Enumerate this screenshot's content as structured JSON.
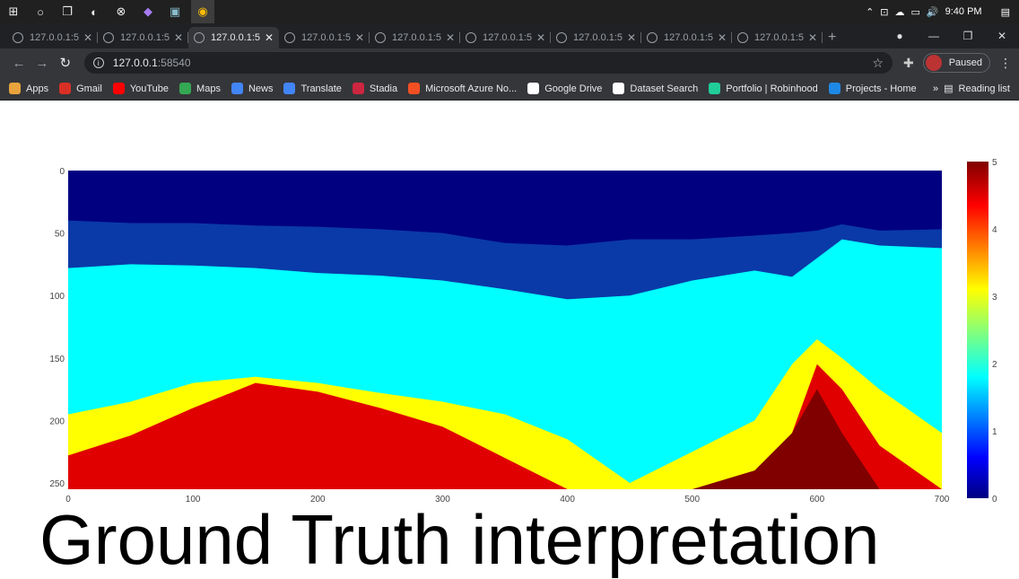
{
  "taskbar": {
    "time": "9:40 PM",
    "apps": [
      {
        "name": "windows-start-icon"
      },
      {
        "name": "cortana-icon"
      },
      {
        "name": "task-view-icon"
      },
      {
        "name": "edge-icon"
      },
      {
        "name": "xbox-icon"
      },
      {
        "name": "visual-studio-icon"
      },
      {
        "name": "photos-icon"
      },
      {
        "name": "chrome-icon"
      }
    ]
  },
  "browser": {
    "tabs": [
      {
        "label": "127.0.0.1:5"
      },
      {
        "label": "127.0.0.1:5"
      },
      {
        "label": "127.0.0.1:5"
      },
      {
        "label": "127.0.0.1:5"
      },
      {
        "label": "127.0.0.1:5"
      },
      {
        "label": "127.0.0.1:5"
      },
      {
        "label": "127.0.0.1:5"
      },
      {
        "label": "127.0.0.1:5"
      },
      {
        "label": "127.0.0.1:5"
      }
    ],
    "active_tab": 2,
    "address_host": "127.0.0.1",
    "address_port": ":58540",
    "profile_label": "Paused",
    "bookmarks": [
      {
        "label": "Apps",
        "color": "#e8a33d"
      },
      {
        "label": "Gmail",
        "color": "#d93025"
      },
      {
        "label": "YouTube",
        "color": "#ff0000"
      },
      {
        "label": "Maps",
        "color": "#34a853"
      },
      {
        "label": "News",
        "color": "#4285f4"
      },
      {
        "label": "Translate",
        "color": "#4285f4"
      },
      {
        "label": "Stadia",
        "color": "#cd2640"
      },
      {
        "label": "Microsoft Azure No...",
        "color": "#f25022"
      },
      {
        "label": "Google Drive",
        "color": "#ffffff"
      },
      {
        "label": "Dataset Search",
        "color": "#ffffff"
      },
      {
        "label": "Portfolio | Robinhood",
        "color": "#21ce99"
      },
      {
        "label": "Projects - Home",
        "color": "#1e88e5"
      }
    ],
    "reading_list": "Reading list"
  },
  "page": {
    "caption": "Ground Truth interpretation"
  },
  "chart_data": {
    "type": "heatmap",
    "colormap": "jet",
    "x_range": [
      0,
      700
    ],
    "y_range": [
      0,
      255
    ],
    "y_inverted": true,
    "x_ticks": [
      0,
      100,
      200,
      300,
      400,
      500,
      600,
      700
    ],
    "y_ticks": [
      0,
      50,
      100,
      150,
      200,
      250
    ],
    "colorbar_range": [
      0,
      5
    ],
    "colorbar_ticks": [
      0,
      1,
      2,
      3,
      4,
      5
    ],
    "class_colors": [
      "#000080",
      "#0a3aa8",
      "#00ffff",
      "#ffff00",
      "#e00000",
      "#800000"
    ],
    "boundaries_x": [
      0,
      50,
      100,
      150,
      200,
      250,
      300,
      350,
      400,
      450,
      500,
      550,
      580,
      600,
      620,
      650,
      700
    ],
    "boundary_0_1": [
      40,
      42,
      42,
      44,
      45,
      47,
      50,
      58,
      60,
      55,
      55,
      52,
      50,
      48,
      43,
      48,
      47
    ],
    "boundary_1_2": [
      78,
      75,
      76,
      78,
      82,
      84,
      88,
      95,
      103,
      100,
      88,
      80,
      85,
      70,
      55,
      60,
      62
    ],
    "boundary_2_3": [
      195,
      185,
      170,
      165,
      170,
      178,
      185,
      195,
      215,
      250,
      225,
      200,
      155,
      135,
      150,
      175,
      210
    ],
    "boundary_3_4": [
      228,
      212,
      190,
      170,
      177,
      190,
      205,
      230,
      255,
      255,
      255,
      255,
      210,
      155,
      175,
      220,
      255
    ],
    "boundary_4_5": [
      255,
      255,
      255,
      255,
      255,
      255,
      255,
      255,
      255,
      255,
      255,
      240,
      210,
      175,
      210,
      255,
      255
    ]
  }
}
